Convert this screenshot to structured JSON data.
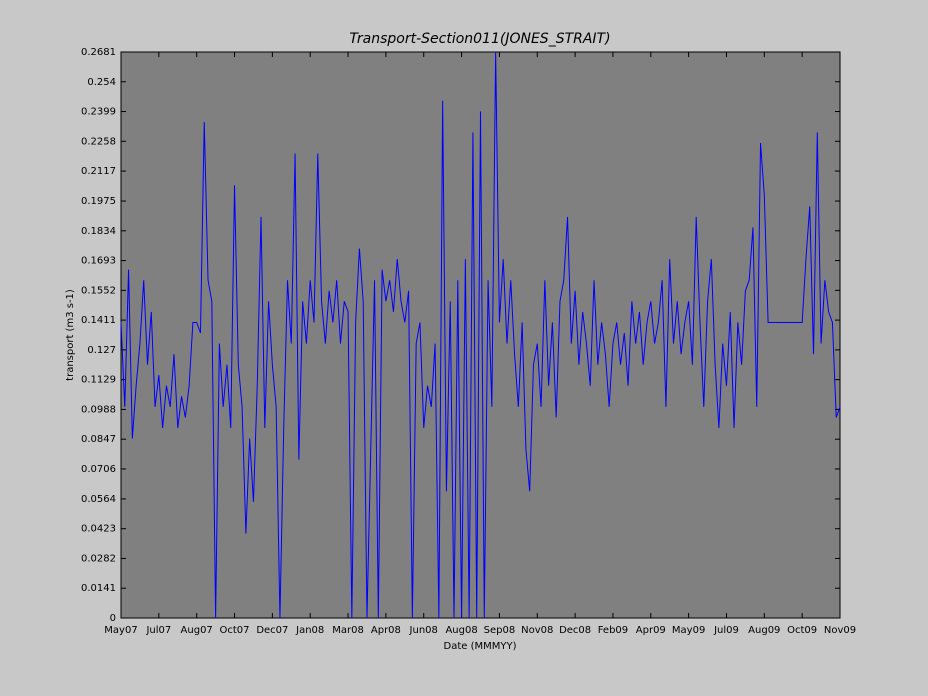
{
  "chart_data": {
    "type": "line",
    "title": "Transport-Section011(JONES_STRAIT)",
    "y_label": "transport (m3 s-1)",
    "x_label": "Date (MMMYY)",
    "xlim": [
      0,
      19
    ],
    "xticks": [
      {
        "value": 0,
        "label": "May07"
      },
      {
        "value": 1,
        "label": "Jul07"
      },
      {
        "value": 2,
        "label": "Aug07"
      },
      {
        "value": 3,
        "label": "Oct07"
      },
      {
        "value": 4,
        "label": "Dec07"
      },
      {
        "value": 5,
        "label": "Jan08"
      },
      {
        "value": 6,
        "label": "Mar08"
      },
      {
        "value": 7,
        "label": "Apr08"
      },
      {
        "value": 8,
        "label": "Jun08"
      },
      {
        "value": 9,
        "label": "Aug08"
      },
      {
        "value": 10,
        "label": "Sep08"
      },
      {
        "value": 11,
        "label": "Nov08"
      },
      {
        "value": 12,
        "label": "Dec08"
      },
      {
        "value": 13,
        "label": "Feb09"
      },
      {
        "value": 14,
        "label": "Apr09"
      },
      {
        "value": 15,
        "label": "May09"
      },
      {
        "value": 16,
        "label": "Jul09"
      },
      {
        "value": 17,
        "label": "Aug09"
      },
      {
        "value": 18,
        "label": "Oct09"
      },
      {
        "value": 19,
        "label": "Nov09"
      }
    ],
    "ylim": [
      0,
      0.2681
    ],
    "yticks": [
      0,
      0.0141,
      0.0282,
      0.0423,
      0.0564,
      0.0706,
      0.0847,
      0.0988,
      0.1129,
      0.127,
      0.1411,
      0.1552,
      0.1693,
      0.1834,
      0.1975,
      0.2117,
      0.2258,
      0.2399,
      0.254,
      0.2681
    ],
    "grid": false,
    "series": [
      {
        "color": "#0000ff",
        "x": [
          0,
          0.1,
          0.2,
          0.3,
          0.4,
          0.5,
          0.6,
          0.7,
          0.8,
          0.9,
          1,
          1.1,
          1.2,
          1.3,
          1.4,
          1.5,
          1.6,
          1.7,
          1.8,
          1.9,
          2,
          2.1,
          2.2,
          2.3,
          2.4,
          2.5,
          2.6,
          2.7,
          2.8,
          2.9,
          3,
          3.1,
          3.2,
          3.3,
          3.4,
          3.5,
          3.6,
          3.7,
          3.8,
          3.9,
          4,
          4.1,
          4.2,
          4.3,
          4.4,
          4.5,
          4.6,
          4.7,
          4.8,
          4.9,
          5,
          5.1,
          5.2,
          5.3,
          5.4,
          5.5,
          5.6,
          5.7,
          5.8,
          5.9,
          6,
          6.1,
          6.2,
          6.3,
          6.4,
          6.5,
          6.6,
          6.7,
          6.8,
          6.9,
          7,
          7.1,
          7.2,
          7.3,
          7.4,
          7.5,
          7.6,
          7.7,
          7.8,
          7.9,
          8,
          8.1,
          8.2,
          8.3,
          8.4,
          8.5,
          8.6,
          8.7,
          8.8,
          8.9,
          9,
          9.1,
          9.2,
          9.3,
          9.4,
          9.5,
          9.6,
          9.7,
          9.8,
          9.9,
          10,
          10.1,
          10.2,
          10.3,
          10.4,
          10.5,
          10.6,
          10.7,
          10.8,
          10.9,
          11,
          11.1,
          11.2,
          11.3,
          11.4,
          11.5,
          11.6,
          11.7,
          11.8,
          11.9,
          12,
          12.1,
          12.2,
          12.3,
          12.4,
          12.5,
          12.6,
          12.7,
          12.8,
          12.9,
          13,
          13.1,
          13.2,
          13.3,
          13.4,
          13.5,
          13.6,
          13.7,
          13.8,
          13.9,
          14,
          14.1,
          14.2,
          14.3,
          14.4,
          14.5,
          14.6,
          14.7,
          14.8,
          14.9,
          15,
          15.1,
          15.2,
          15.3,
          15.4,
          15.5,
          15.6,
          15.7,
          15.8,
          15.9,
          16,
          16.1,
          16.2,
          16.3,
          16.4,
          16.5,
          16.6,
          16.7,
          16.8,
          16.9,
          17,
          17.1,
          17.2,
          17.3,
          17.4,
          17.5,
          17.6,
          17.7,
          17.8,
          17.9,
          18,
          18.1,
          18.2,
          18.3,
          18.4,
          18.5,
          18.6,
          18.7,
          18.8,
          18.9,
          19
        ],
        "values": [
          0.14,
          0.1,
          0.165,
          0.085,
          0.11,
          0.13,
          0.16,
          0.12,
          0.145,
          0.1,
          0.115,
          0.09,
          0.11,
          0.1,
          0.125,
          0.09,
          0.105,
          0.095,
          0.11,
          0.14,
          0.14,
          0.135,
          0.235,
          0.16,
          0.15,
          0.0,
          0.13,
          0.1,
          0.12,
          0.09,
          0.205,
          0.12,
          0.1,
          0.04,
          0.085,
          0.055,
          0.11,
          0.19,
          0.09,
          0.15,
          0.12,
          0.1,
          0.0,
          0.09,
          0.16,
          0.13,
          0.22,
          0.075,
          0.15,
          0.13,
          0.16,
          0.14,
          0.22,
          0.15,
          0.13,
          0.155,
          0.14,
          0.16,
          0.13,
          0.15,
          0.145,
          0.0,
          0.14,
          0.175,
          0.15,
          0.0,
          0.08,
          0.16,
          0.0,
          0.165,
          0.15,
          0.16,
          0.145,
          0.17,
          0.15,
          0.14,
          0.155,
          0.0,
          0.13,
          0.14,
          0.09,
          0.11,
          0.1,
          0.13,
          0.0,
          0.245,
          0.06,
          0.15,
          0.0,
          0.16,
          0.0,
          0.17,
          0.0,
          0.23,
          0.0,
          0.24,
          0.0,
          0.16,
          0.1,
          0.2681,
          0.14,
          0.17,
          0.13,
          0.16,
          0.125,
          0.1,
          0.14,
          0.08,
          0.06,
          0.12,
          0.13,
          0.1,
          0.16,
          0.11,
          0.14,
          0.095,
          0.15,
          0.16,
          0.19,
          0.13,
          0.155,
          0.12,
          0.145,
          0.13,
          0.11,
          0.16,
          0.12,
          0.14,
          0.125,
          0.1,
          0.13,
          0.14,
          0.12,
          0.135,
          0.11,
          0.15,
          0.13,
          0.145,
          0.12,
          0.14,
          0.15,
          0.13,
          0.14,
          0.16,
          0.1,
          0.17,
          0.13,
          0.15,
          0.125,
          0.14,
          0.15,
          0.12,
          0.19,
          0.14,
          0.1,
          0.15,
          0.17,
          0.12,
          0.09,
          0.13,
          0.11,
          0.145,
          0.09,
          0.14,
          0.12,
          0.155,
          0.16,
          0.185,
          0.1,
          0.225,
          0.2,
          0.14,
          0.14,
          0.14,
          0.14,
          0.14,
          0.14,
          0.14,
          0.14,
          0.14,
          0.14,
          0.17,
          0.195,
          0.125,
          0.23,
          0.13,
          0.16,
          0.145,
          0.14,
          0.095,
          0.1
        ]
      }
    ]
  }
}
